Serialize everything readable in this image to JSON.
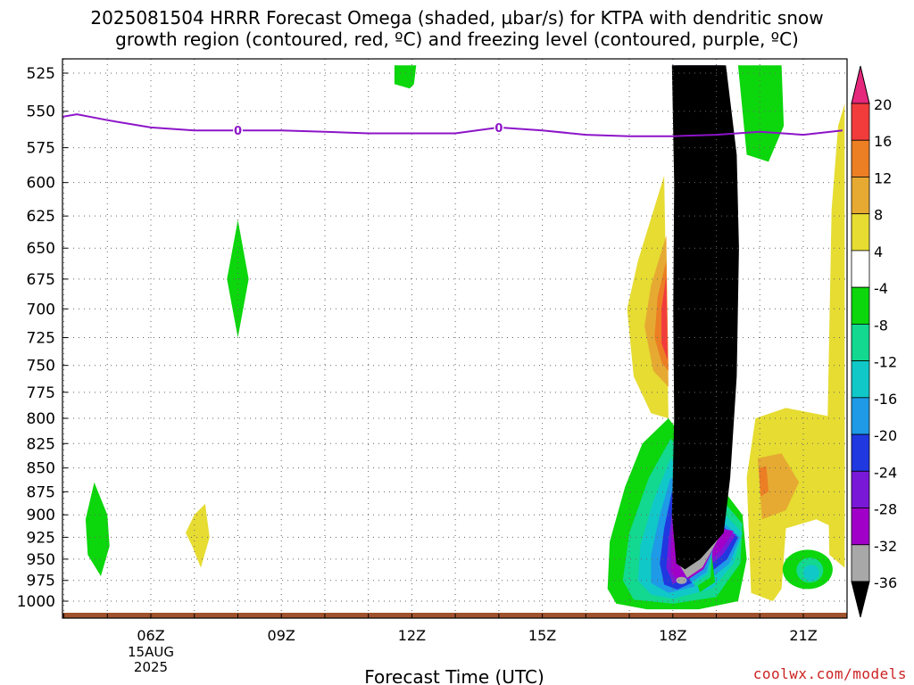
{
  "title_line1": "2025081504 HRRR Forecast Omega (shaded, µbar/s) for KTPA with dendritic snow",
  "title_line2": "growth region (contoured, red, ºC) and freezing level (contoured, purple, ºC)",
  "credit": "coolwx.com/models",
  "chart_data": {
    "type": "heatmap",
    "title": "2025081504 HRRR Forecast Omega (shaded, µbar/s) for KTPA with dendritic snow growth region (contoured, red, ºC) and freezing level (contoured, purple, ºC)",
    "xlabel": "Forecast Time (UTC)",
    "ylabel": "",
    "x_unit": "hour UTC (2025-08-15)",
    "xlim": [
      3.3,
      21.9
    ],
    "ylim": [
      1010,
      520
    ],
    "y_scale": "log pressure (hPa)",
    "grid": true,
    "x_ticks": [
      {
        "x": 6,
        "label": "06Z",
        "sub": [
          "15AUG",
          "2025"
        ]
      },
      {
        "x": 9,
        "label": "09Z"
      },
      {
        "x": 12,
        "label": "12Z"
      },
      {
        "x": 15,
        "label": "15Z"
      },
      {
        "x": 18,
        "label": "18Z"
      },
      {
        "x": 21,
        "label": "21Z"
      }
    ],
    "y_ticks": [
      525,
      550,
      575,
      600,
      625,
      650,
      675,
      700,
      725,
      750,
      775,
      800,
      825,
      850,
      875,
      900,
      925,
      950,
      975,
      1000
    ],
    "colorbar": {
      "levels": [
        -36,
        -32,
        -28,
        -24,
        -20,
        -16,
        -12,
        -8,
        -4,
        4,
        8,
        12,
        16,
        20
      ],
      "labels": [
        "20",
        "16",
        "12",
        "8",
        "4",
        "-4",
        "-8",
        "-12",
        "-16",
        "-20",
        "-24",
        "-28",
        "-32",
        "-36"
      ],
      "bins": [
        {
          "range": "< -36",
          "color": "#000000"
        },
        {
          "range": "-36 to -32",
          "color": "#a8a8a8"
        },
        {
          "range": "-32 to -28",
          "color": "#a000c8"
        },
        {
          "range": "-28 to -24",
          "color": "#7a18d8"
        },
        {
          "range": "-24 to -20",
          "color": "#2038e0"
        },
        {
          "range": "-20 to -16",
          "color": "#1e9ae6"
        },
        {
          "range": "-16 to -12",
          "color": "#10c8c8"
        },
        {
          "range": "-12 to -8",
          "color": "#12d890"
        },
        {
          "range": "-8 to -4",
          "color": "#0cd60c"
        },
        {
          "range": "-4 to 4",
          "color": "#ffffff"
        },
        {
          "range": "4 to 8",
          "color": "#e6dc32"
        },
        {
          "range": "8 to 12",
          "color": "#e6aa32"
        },
        {
          "range": "12 to 16",
          "color": "#ec7e24"
        },
        {
          "range": "16 to 20",
          "color": "#f23c3c"
        },
        {
          "range": "> 20",
          "color": "#e6287c"
        }
      ]
    },
    "freezing_level": {
      "label": "0",
      "color": "#8c14c8",
      "x": [
        3.3,
        4.3,
        5.0,
        6.0,
        7.0,
        8.0,
        9.0,
        10.0,
        11.0,
        12.0,
        13.0,
        14.0,
        15.0,
        16.0,
        17.0,
        18.0,
        19.0,
        20.0,
        21.0,
        21.9
      ],
      "p": [
        557,
        552,
        556,
        561,
        563,
        563,
        563,
        564,
        565,
        565,
        565,
        561,
        563,
        566,
        567,
        567,
        566,
        564,
        566,
        563
      ]
    },
    "omega_features": [
      {
        "name": "deep ascent column",
        "x": [
          17.9,
          19.7
        ],
        "p": [
          520,
          985
        ],
        "min_value": "< -36"
      },
      {
        "name": "upper ascent",
        "x": 12,
        "p": [
          520,
          535
        ],
        "value": "-8 to -4"
      },
      {
        "name": "mid ascent",
        "x": 8,
        "p": [
          630,
          725
        ],
        "value": "-8 to -4"
      },
      {
        "name": "low ascent",
        "x": 4.7,
        "p": [
          865,
          975
        ],
        "value": "-8 to -4"
      },
      {
        "name": "low descent",
        "x": 7.1,
        "p": [
          890,
          960
        ],
        "value": "4 to 8"
      },
      {
        "name": "descent flank max",
        "x": 17.7,
        "p": [
          670,
          760
        ],
        "value": "16 to 20"
      },
      {
        "name": "low descent flank",
        "x": 20.2,
        "p": [
          800,
          990
        ],
        "value": "12 to 16"
      },
      {
        "name": "right edge descent",
        "x": 21.8,
        "p": [
          540,
          950
        ],
        "value": "4 to 8"
      },
      {
        "name": "small ascent cell",
        "x": 21.0,
        "p": [
          930,
          985
        ],
        "value": "-16 to -12"
      }
    ]
  }
}
